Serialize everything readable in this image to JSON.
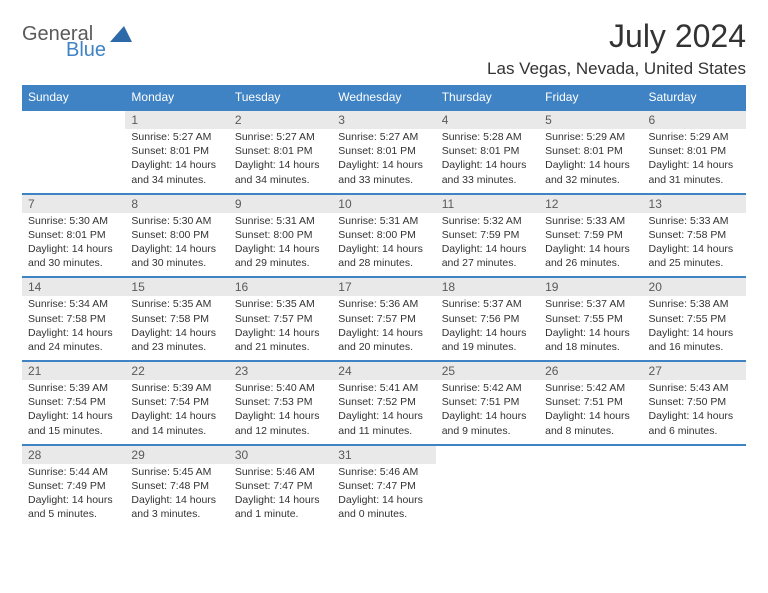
{
  "style": {
    "accent_color": "#3f83c4",
    "logo_gray": "#5a5a5a",
    "logo_blue": "#3f83c4",
    "title_color": "#333333",
    "location_color": "#333333",
    "header_bg": "#3f83c4",
    "header_text": "#ffffff",
    "week_sep_color": "#3f83c4",
    "daynum_bg": "#e9e9e9",
    "daynum_color": "#5a5a5a",
    "body_text_color": "#333333",
    "font": "Arial"
  },
  "logo": {
    "general": "General",
    "blue": "Blue",
    "triangle_fill": "#2f6aa8"
  },
  "title": {
    "month": "July 2024",
    "location": "Las Vegas, Nevada, United States"
  },
  "weekdays": [
    "Sunday",
    "Monday",
    "Tuesday",
    "Wednesday",
    "Thursday",
    "Friday",
    "Saturday"
  ],
  "weeks": [
    [
      null,
      {
        "n": "1",
        "l": [
          "Sunrise: 5:27 AM",
          "Sunset: 8:01 PM",
          "Daylight: 14 hours",
          "and 34 minutes."
        ]
      },
      {
        "n": "2",
        "l": [
          "Sunrise: 5:27 AM",
          "Sunset: 8:01 PM",
          "Daylight: 14 hours",
          "and 34 minutes."
        ]
      },
      {
        "n": "3",
        "l": [
          "Sunrise: 5:27 AM",
          "Sunset: 8:01 PM",
          "Daylight: 14 hours",
          "and 33 minutes."
        ]
      },
      {
        "n": "4",
        "l": [
          "Sunrise: 5:28 AM",
          "Sunset: 8:01 PM",
          "Daylight: 14 hours",
          "and 33 minutes."
        ]
      },
      {
        "n": "5",
        "l": [
          "Sunrise: 5:29 AM",
          "Sunset: 8:01 PM",
          "Daylight: 14 hours",
          "and 32 minutes."
        ]
      },
      {
        "n": "6",
        "l": [
          "Sunrise: 5:29 AM",
          "Sunset: 8:01 PM",
          "Daylight: 14 hours",
          "and 31 minutes."
        ]
      }
    ],
    [
      {
        "n": "7",
        "l": [
          "Sunrise: 5:30 AM",
          "Sunset: 8:01 PM",
          "Daylight: 14 hours",
          "and 30 minutes."
        ]
      },
      {
        "n": "8",
        "l": [
          "Sunrise: 5:30 AM",
          "Sunset: 8:00 PM",
          "Daylight: 14 hours",
          "and 30 minutes."
        ]
      },
      {
        "n": "9",
        "l": [
          "Sunrise: 5:31 AM",
          "Sunset: 8:00 PM",
          "Daylight: 14 hours",
          "and 29 minutes."
        ]
      },
      {
        "n": "10",
        "l": [
          "Sunrise: 5:31 AM",
          "Sunset: 8:00 PM",
          "Daylight: 14 hours",
          "and 28 minutes."
        ]
      },
      {
        "n": "11",
        "l": [
          "Sunrise: 5:32 AM",
          "Sunset: 7:59 PM",
          "Daylight: 14 hours",
          "and 27 minutes."
        ]
      },
      {
        "n": "12",
        "l": [
          "Sunrise: 5:33 AM",
          "Sunset: 7:59 PM",
          "Daylight: 14 hours",
          "and 26 minutes."
        ]
      },
      {
        "n": "13",
        "l": [
          "Sunrise: 5:33 AM",
          "Sunset: 7:58 PM",
          "Daylight: 14 hours",
          "and 25 minutes."
        ]
      }
    ],
    [
      {
        "n": "14",
        "l": [
          "Sunrise: 5:34 AM",
          "Sunset: 7:58 PM",
          "Daylight: 14 hours",
          "and 24 minutes."
        ]
      },
      {
        "n": "15",
        "l": [
          "Sunrise: 5:35 AM",
          "Sunset: 7:58 PM",
          "Daylight: 14 hours",
          "and 23 minutes."
        ]
      },
      {
        "n": "16",
        "l": [
          "Sunrise: 5:35 AM",
          "Sunset: 7:57 PM",
          "Daylight: 14 hours",
          "and 21 minutes."
        ]
      },
      {
        "n": "17",
        "l": [
          "Sunrise: 5:36 AM",
          "Sunset: 7:57 PM",
          "Daylight: 14 hours",
          "and 20 minutes."
        ]
      },
      {
        "n": "18",
        "l": [
          "Sunrise: 5:37 AM",
          "Sunset: 7:56 PM",
          "Daylight: 14 hours",
          "and 19 minutes."
        ]
      },
      {
        "n": "19",
        "l": [
          "Sunrise: 5:37 AM",
          "Sunset: 7:55 PM",
          "Daylight: 14 hours",
          "and 18 minutes."
        ]
      },
      {
        "n": "20",
        "l": [
          "Sunrise: 5:38 AM",
          "Sunset: 7:55 PM",
          "Daylight: 14 hours",
          "and 16 minutes."
        ]
      }
    ],
    [
      {
        "n": "21",
        "l": [
          "Sunrise: 5:39 AM",
          "Sunset: 7:54 PM",
          "Daylight: 14 hours",
          "and 15 minutes."
        ]
      },
      {
        "n": "22",
        "l": [
          "Sunrise: 5:39 AM",
          "Sunset: 7:54 PM",
          "Daylight: 14 hours",
          "and 14 minutes."
        ]
      },
      {
        "n": "23",
        "l": [
          "Sunrise: 5:40 AM",
          "Sunset: 7:53 PM",
          "Daylight: 14 hours",
          "and 12 minutes."
        ]
      },
      {
        "n": "24",
        "l": [
          "Sunrise: 5:41 AM",
          "Sunset: 7:52 PM",
          "Daylight: 14 hours",
          "and 11 minutes."
        ]
      },
      {
        "n": "25",
        "l": [
          "Sunrise: 5:42 AM",
          "Sunset: 7:51 PM",
          "Daylight: 14 hours",
          "and 9 minutes."
        ]
      },
      {
        "n": "26",
        "l": [
          "Sunrise: 5:42 AM",
          "Sunset: 7:51 PM",
          "Daylight: 14 hours",
          "and 8 minutes."
        ]
      },
      {
        "n": "27",
        "l": [
          "Sunrise: 5:43 AM",
          "Sunset: 7:50 PM",
          "Daylight: 14 hours",
          "and 6 minutes."
        ]
      }
    ],
    [
      {
        "n": "28",
        "l": [
          "Sunrise: 5:44 AM",
          "Sunset: 7:49 PM",
          "Daylight: 14 hours",
          "and 5 minutes."
        ]
      },
      {
        "n": "29",
        "l": [
          "Sunrise: 5:45 AM",
          "Sunset: 7:48 PM",
          "Daylight: 14 hours",
          "and 3 minutes."
        ]
      },
      {
        "n": "30",
        "l": [
          "Sunrise: 5:46 AM",
          "Sunset: 7:47 PM",
          "Daylight: 14 hours",
          "and 1 minute."
        ]
      },
      {
        "n": "31",
        "l": [
          "Sunrise: 5:46 AM",
          "Sunset: 7:47 PM",
          "Daylight: 14 hours",
          "and 0 minutes."
        ]
      },
      null,
      null,
      null
    ]
  ]
}
